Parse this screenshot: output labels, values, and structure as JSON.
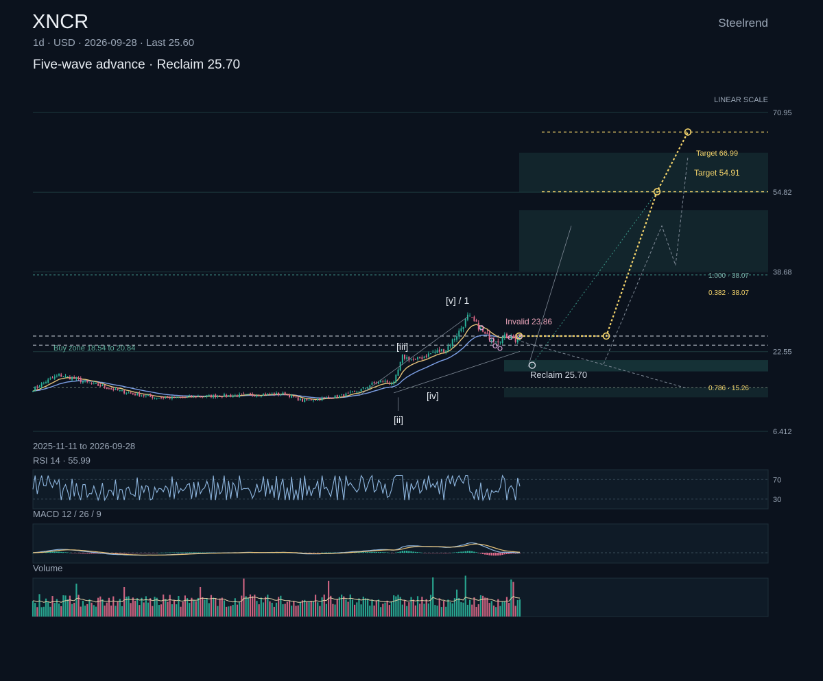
{
  "header": {
    "ticker": "XNCR",
    "meta": "1d · USD · 2026-09-28 · Last 25.60",
    "subtitle": "Five-wave advance · Reclaim 25.70",
    "brand": "Steelrend"
  },
  "colors": {
    "background": "#0b121d",
    "up": "#2bb39a",
    "down": "#e06b8b",
    "accent_gold": "#f3d36b",
    "ema_fast": "#e6c27a",
    "ema_slow": "#7da0e6",
    "zone_teal": "#1f4a4a"
  },
  "chart_data": {
    "type": "candlestick",
    "scale_label": "LINEAR SCALE",
    "ylim": [
      6.412,
      70.95
    ],
    "y_ticks": [
      "70.95",
      "54.82",
      "38.68",
      "22.55",
      "6.412"
    ],
    "date_range": "2025-11-11 to 2026-09-28",
    "last": 25.6,
    "levels": [
      {
        "label": "1.000 · 38.07",
        "value": 38.07
      },
      {
        "label": "0.382 · 38.07",
        "value": 38.07
      },
      {
        "label": "0.786 · 15.26",
        "value": 15.26
      }
    ],
    "annotations": {
      "buy_zone": "Buy zone 18.54 to 20.84",
      "invalid": "Invalid 23.86",
      "reclaim": "Reclaim 25.70",
      "target1": "Target 54.91",
      "target2": "Target 66.99"
    },
    "target_values": [
      54.91,
      66.99
    ],
    "wave_labels": [
      "[ii]",
      "[iii]",
      "[iv]",
      "[v] / 1"
    ],
    "close_anchors": [
      [
        0,
        14.9
      ],
      [
        6,
        16.5
      ],
      [
        12,
        17.8
      ],
      [
        18,
        17.2
      ],
      [
        26,
        16.2
      ],
      [
        36,
        15.0
      ],
      [
        46,
        14.0
      ],
      [
        56,
        13.3
      ],
      [
        66,
        13.2
      ],
      [
        76,
        13.5
      ],
      [
        86,
        13.6
      ],
      [
        96,
        13.7
      ],
      [
        106,
        13.9
      ],
      [
        116,
        14.0
      ],
      [
        124,
        12.6
      ],
      [
        132,
        13.0
      ],
      [
        142,
        13.6
      ],
      [
        150,
        14.6
      ],
      [
        156,
        16.0
      ],
      [
        161,
        16.6
      ],
      [
        166,
        16.1
      ],
      [
        170,
        21.5
      ],
      [
        176,
        20.8
      ],
      [
        184,
        22.4
      ],
      [
        190,
        23.0
      ],
      [
        196,
        26.6
      ],
      [
        200,
        29.6
      ],
      [
        202,
        28.9
      ],
      [
        205,
        27.6
      ],
      [
        208,
        25.9
      ],
      [
        211,
        25.3
      ],
      [
        214,
        24.9
      ],
      [
        217,
        25.5
      ],
      [
        220,
        25.9
      ],
      [
        222,
        24.8
      ],
      [
        224,
        25.6
      ]
    ],
    "rsi": {
      "label": "RSI 14 · 55.99",
      "value": 55.99,
      "upper": 70,
      "lower": 30,
      "upper_label": "70",
      "lower_label": "30"
    },
    "macd": {
      "label": "MACD 12 / 26 / 9"
    },
    "volume": {
      "label": "Volume"
    }
  }
}
